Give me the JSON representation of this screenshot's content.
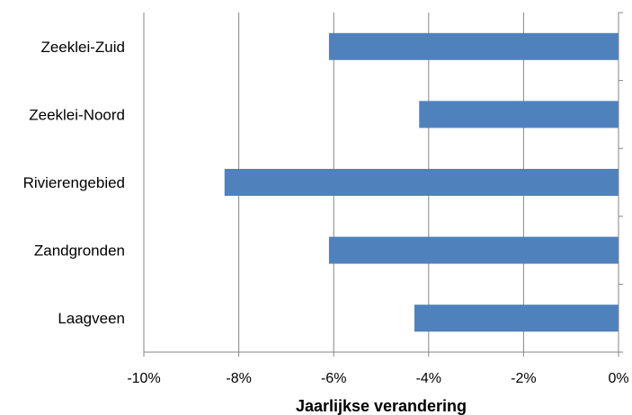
{
  "chart_data": {
    "type": "bar",
    "orientation": "horizontal",
    "title": "",
    "xlabel": "Jaarlijkse verandering",
    "ylabel": "",
    "categories": [
      "Zeeklei-Zuid",
      "Zeeklei-Noord",
      "Rivierengebied",
      "Zandgronden",
      "Laagveen"
    ],
    "values": [
      -6.1,
      -4.2,
      -8.3,
      -6.1,
      -4.3
    ],
    "xlim": [
      -10,
      0
    ],
    "xticks": [
      -10,
      -8,
      -6,
      -4,
      -2,
      0
    ],
    "xtick_labels": [
      "-10%",
      "-8%",
      "-6%",
      "-4%",
      "-2%",
      "0%"
    ],
    "grid": "vertical",
    "legend": "none",
    "bar_color": "#4f81bd",
    "grid_color": "#868686"
  }
}
